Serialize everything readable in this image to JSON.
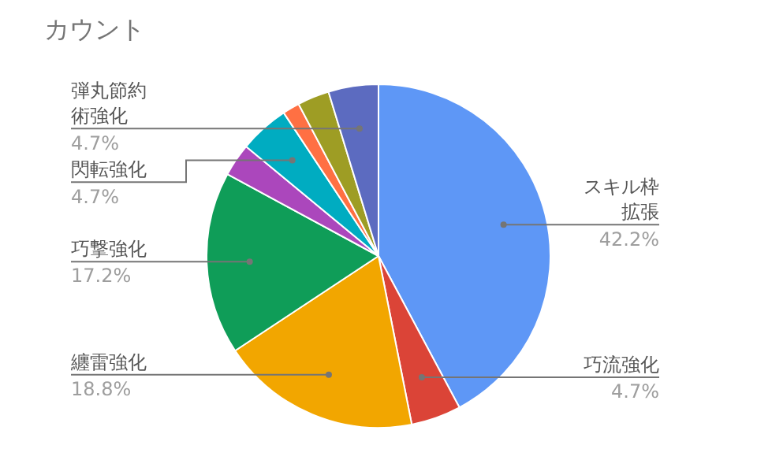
{
  "chart_data": {
    "type": "pie",
    "title": "カウント",
    "categories": [
      "スキル枠拡張",
      "巧流強化",
      "纏雷強化",
      "巧撃強化",
      null,
      "閃転強化",
      null,
      null,
      "弾丸節約術強化"
    ],
    "values": [
      42.2,
      4.7,
      18.8,
      17.2,
      3.1,
      4.7,
      1.6,
      3.0,
      4.7
    ],
    "colors": [
      "#5e97f6",
      "#db4437",
      "#f2a600",
      "#0f9d58",
      "#ab47bc",
      "#00acc1",
      "#ff7043",
      "#9e9d24",
      "#5c6bc0"
    ],
    "value_labels": [
      "42.2%",
      "4.7%",
      "18.8%",
      "17.2%",
      null,
      "4.7%",
      null,
      null,
      "4.7%"
    ],
    "legend": false
  }
}
